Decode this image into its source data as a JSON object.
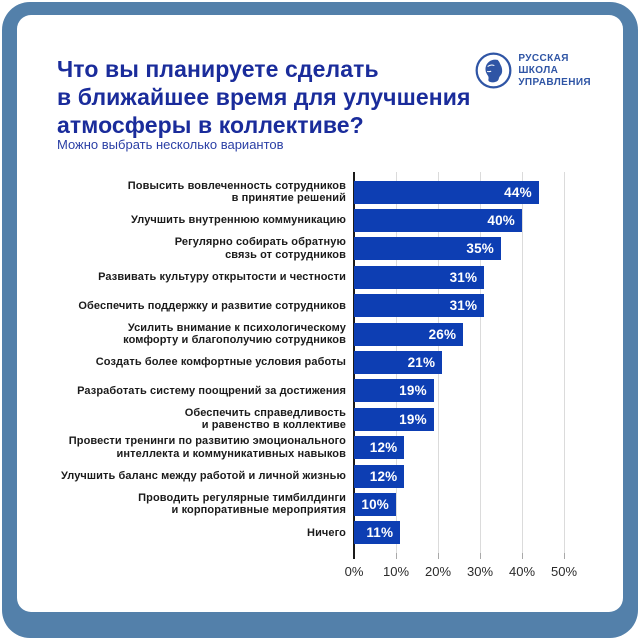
{
  "header": {
    "title_lines": [
      "Что вы планируете сделать",
      "в ближайшее время для улучшения",
      "атмосферы в коллективе?"
    ],
    "subtitle": "Можно выбрать несколько вариантов"
  },
  "logo": {
    "org_name": "Русская Школа Управления",
    "lines": [
      "РУССКАЯ",
      "ШКОЛА",
      "УПРАВЛЕНИЯ"
    ]
  },
  "colors": {
    "frame": "#5380AA",
    "bar": "#0D3EB3",
    "title": "#1A2C9B",
    "subtitle": "#2A3FA5",
    "label": "#1B1B1B",
    "value_label": "#FFFFFF",
    "gridline": "#DBDBDB",
    "axis": "#1A1A1A",
    "tick_label": "#2B2B2B",
    "logo_blue": "#2F55A5"
  },
  "chart_data": {
    "type": "bar",
    "orientation": "horizontal",
    "title": "Что вы планируете сделать в ближайшее время для улучшения атмосферы в коллективе?",
    "subtitle": "Можно выбрать несколько вариантов",
    "categories": [
      "Повысить вовлеченность сотрудников\nв принятие решений",
      "Улучшить внутреннюю коммуникацию",
      "Регулярно собирать обратную\nсвязь от сотрудников",
      "Развивать культуру открытости и честности",
      "Обеспечить поддержку и развитие сотрудников",
      "Усилить внимание к психологическому\nкомфорту и благополучию сотрудников",
      "Создать более комфортные условия работы",
      "Разработать систему поощрений за достижения",
      "Обеспечить справедливость\nи равенство в коллективе",
      "Провести тренинги по развитию эмоционального\nинтеллекта и коммуникативных навыков",
      "Улучшить баланс между работой и личной жизнью",
      "Проводить регулярные тимбилдинги\nи корпоративные мероприятия",
      "Ничего"
    ],
    "values": [
      44,
      40,
      35,
      31,
      31,
      26,
      21,
      19,
      19,
      12,
      12,
      10,
      11
    ],
    "value_suffix": "%",
    "x_ticks": [
      0,
      10,
      20,
      30,
      40,
      50
    ],
    "x_tick_labels": [
      "0%",
      "10%",
      "20%",
      "30%",
      "40%",
      "50%"
    ],
    "xlim": [
      0,
      50
    ],
    "grid": "vertical",
    "legend": "none"
  }
}
